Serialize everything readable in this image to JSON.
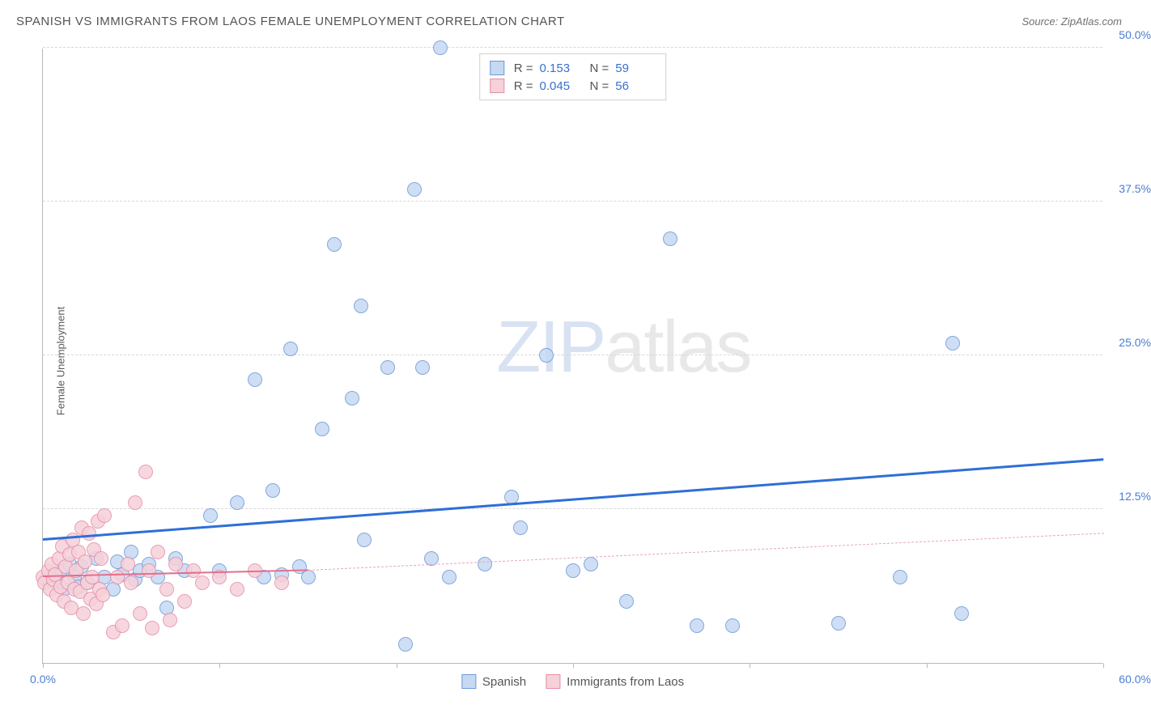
{
  "title": "SPANISH VS IMMIGRANTS FROM LAOS FEMALE UNEMPLOYMENT CORRELATION CHART",
  "source": "Source: ZipAtlas.com",
  "y_axis_label": "Female Unemployment",
  "watermark_zip": "ZIP",
  "watermark_atlas": "atlas",
  "chart": {
    "type": "scatter",
    "background_color": "#ffffff",
    "grid_color": "#d8d8d8",
    "axis_color": "#b8b8b8",
    "xlim": [
      0,
      60
    ],
    "ylim": [
      0,
      50
    ],
    "x_ticks": [
      0,
      10,
      20,
      30,
      40,
      50,
      60
    ],
    "x_tick_labels": {
      "0": "0.0%",
      "60": "60.0%"
    },
    "y_ticks": [
      12.5,
      25.0,
      37.5,
      50.0
    ],
    "y_tick_labels": [
      "12.5%",
      "25.0%",
      "37.5%",
      "50.0%"
    ],
    "marker_radius": 9,
    "marker_border_width": 1.5,
    "series": [
      {
        "name": "Spanish",
        "fill_color": "#c6d9f3",
        "border_color": "#6f99d6",
        "r_value": "0.153",
        "n_value": "59",
        "trend": {
          "x1": 0,
          "y1": 10.0,
          "x2": 60,
          "y2": 16.5,
          "color": "#2e6fd6",
          "width": 2.5,
          "style": "solid"
        },
        "points": [
          [
            0.2,
            6.8
          ],
          [
            0.5,
            7.2
          ],
          [
            0.8,
            6.5
          ],
          [
            1.0,
            7.5
          ],
          [
            1.2,
            6.0
          ],
          [
            1.5,
            8.0
          ],
          [
            1.8,
            7.0
          ],
          [
            2.0,
            6.2
          ],
          [
            2.2,
            7.8
          ],
          [
            2.5,
            6.5
          ],
          [
            3.0,
            8.5
          ],
          [
            3.5,
            7.0
          ],
          [
            4.0,
            6.0
          ],
          [
            4.2,
            8.2
          ],
          [
            4.5,
            7.2
          ],
          [
            5.0,
            9.0
          ],
          [
            5.2,
            6.8
          ],
          [
            5.5,
            7.5
          ],
          [
            6.0,
            8.0
          ],
          [
            6.5,
            7.0
          ],
          [
            7.0,
            4.5
          ],
          [
            7.5,
            8.5
          ],
          [
            8.0,
            7.5
          ],
          [
            9.5,
            12.0
          ],
          [
            10.0,
            7.5
          ],
          [
            11.0,
            13.0
          ],
          [
            12.0,
            23.0
          ],
          [
            12.5,
            7.0
          ],
          [
            13.0,
            14.0
          ],
          [
            13.5,
            7.2
          ],
          [
            14.0,
            25.5
          ],
          [
            14.5,
            7.8
          ],
          [
            15.0,
            7.0
          ],
          [
            15.8,
            19.0
          ],
          [
            16.5,
            34.0
          ],
          [
            17.5,
            21.5
          ],
          [
            18.0,
            29.0
          ],
          [
            18.2,
            10.0
          ],
          [
            19.5,
            24.0
          ],
          [
            20.5,
            1.5
          ],
          [
            21.0,
            38.5
          ],
          [
            21.5,
            24.0
          ],
          [
            22.0,
            8.5
          ],
          [
            22.5,
            50.0
          ],
          [
            23.0,
            7.0
          ],
          [
            25.0,
            8.0
          ],
          [
            26.5,
            13.5
          ],
          [
            27.0,
            11.0
          ],
          [
            28.5,
            25.0
          ],
          [
            30.0,
            7.5
          ],
          [
            31.0,
            8.0
          ],
          [
            33.0,
            5.0
          ],
          [
            35.5,
            34.5
          ],
          [
            37.0,
            3.0
          ],
          [
            39.0,
            3.0
          ],
          [
            45.0,
            3.2
          ],
          [
            48.5,
            7.0
          ],
          [
            51.5,
            26.0
          ],
          [
            52.0,
            4.0
          ]
        ]
      },
      {
        "name": "Immigrants from Laos",
        "fill_color": "#f6d1da",
        "border_color": "#e58fa5",
        "r_value": "0.045",
        "n_value": "56",
        "trend_solid": {
          "x1": 0,
          "y1": 7.0,
          "x2": 15,
          "y2": 7.5,
          "color": "#e56f8c",
          "width": 2,
          "style": "solid"
        },
        "trend": {
          "x1": 15,
          "y1": 7.5,
          "x2": 60,
          "y2": 10.5,
          "color": "#e8a8b8",
          "width": 1.5,
          "style": "dashed"
        },
        "points": [
          [
            0.0,
            7.0
          ],
          [
            0.1,
            6.5
          ],
          [
            0.3,
            7.5
          ],
          [
            0.4,
            6.0
          ],
          [
            0.5,
            8.0
          ],
          [
            0.6,
            6.8
          ],
          [
            0.7,
            7.2
          ],
          [
            0.8,
            5.5
          ],
          [
            0.9,
            8.5
          ],
          [
            1.0,
            6.2
          ],
          [
            1.1,
            9.5
          ],
          [
            1.2,
            5.0
          ],
          [
            1.3,
            7.8
          ],
          [
            1.4,
            6.5
          ],
          [
            1.5,
            8.8
          ],
          [
            1.6,
            4.5
          ],
          [
            1.7,
            10.0
          ],
          [
            1.8,
            6.0
          ],
          [
            1.9,
            7.5
          ],
          [
            2.0,
            9.0
          ],
          [
            2.1,
            5.8
          ],
          [
            2.2,
            11.0
          ],
          [
            2.3,
            4.0
          ],
          [
            2.4,
            8.2
          ],
          [
            2.5,
            6.5
          ],
          [
            2.6,
            10.5
          ],
          [
            2.7,
            5.2
          ],
          [
            2.8,
            7.0
          ],
          [
            2.9,
            9.2
          ],
          [
            3.0,
            4.8
          ],
          [
            3.1,
            11.5
          ],
          [
            3.2,
            6.0
          ],
          [
            3.3,
            8.5
          ],
          [
            3.4,
            5.5
          ],
          [
            3.5,
            12.0
          ],
          [
            4.0,
            2.5
          ],
          [
            4.2,
            7.0
          ],
          [
            4.5,
            3.0
          ],
          [
            4.8,
            8.0
          ],
          [
            5.0,
            6.5
          ],
          [
            5.2,
            13.0
          ],
          [
            5.5,
            4.0
          ],
          [
            5.8,
            15.5
          ],
          [
            6.0,
            7.5
          ],
          [
            6.2,
            2.8
          ],
          [
            6.5,
            9.0
          ],
          [
            7.0,
            6.0
          ],
          [
            7.2,
            3.5
          ],
          [
            7.5,
            8.0
          ],
          [
            8.0,
            5.0
          ],
          [
            8.5,
            7.5
          ],
          [
            9.0,
            6.5
          ],
          [
            10.0,
            7.0
          ],
          [
            11.0,
            6.0
          ],
          [
            12.0,
            7.5
          ],
          [
            13.5,
            6.5
          ]
        ]
      }
    ]
  },
  "legend_bottom": [
    {
      "label": "Spanish",
      "fill": "#c6d9f3",
      "border": "#6f99d6"
    },
    {
      "label": "Immigrants from Laos",
      "fill": "#f6d1da",
      "border": "#e58fa5"
    }
  ],
  "legend_top_labels": {
    "r": "R  =",
    "n": "N  ="
  }
}
